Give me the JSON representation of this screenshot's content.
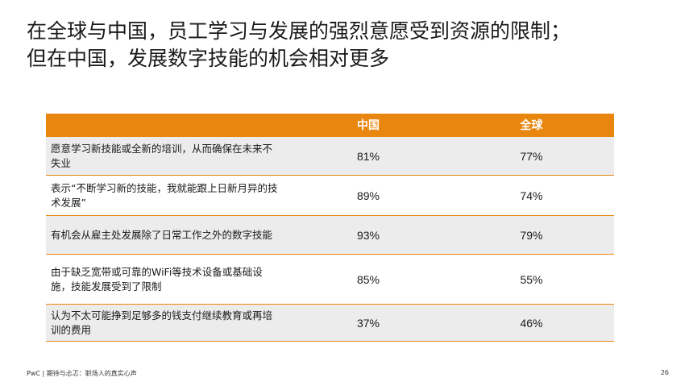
{
  "title": {
    "line1": "在全球与中国，员工学习与发展的强烈意愿受到资源的限制；",
    "line2": "但在中国，发展数字技能的机会相对更多"
  },
  "table": {
    "headers": [
      "",
      "中国",
      "全球"
    ],
    "rows": [
      {
        "label": "愿意学习新技能或全新的培训，从而确保在未来不失业",
        "china": "81%",
        "global": "77%"
      },
      {
        "label": "表示“不断学习新的技能，我就能跟上日新月异的技术发展”",
        "china": "89%",
        "global": "74%"
      },
      {
        "label": "有机会从雇主处发展除了日常工作之外的数字技能",
        "china": "93%",
        "global": "79%"
      },
      {
        "label": "由于缺乏宽带或可靠的WiFi等技术设备或基础设施，技能发展受到了限制",
        "china": "85%",
        "global": "55%"
      },
      {
        "label": "认为不太可能挣到足够多的钱支付继续教育或再培训的费用",
        "china": "37%",
        "global": "46%"
      }
    ]
  },
  "footer": {
    "text": "PwC | 期待与忐忑：职场人的真实心声",
    "page": "26"
  },
  "colors": {
    "accent": "#e8860f",
    "row_alt": "#ececec"
  }
}
